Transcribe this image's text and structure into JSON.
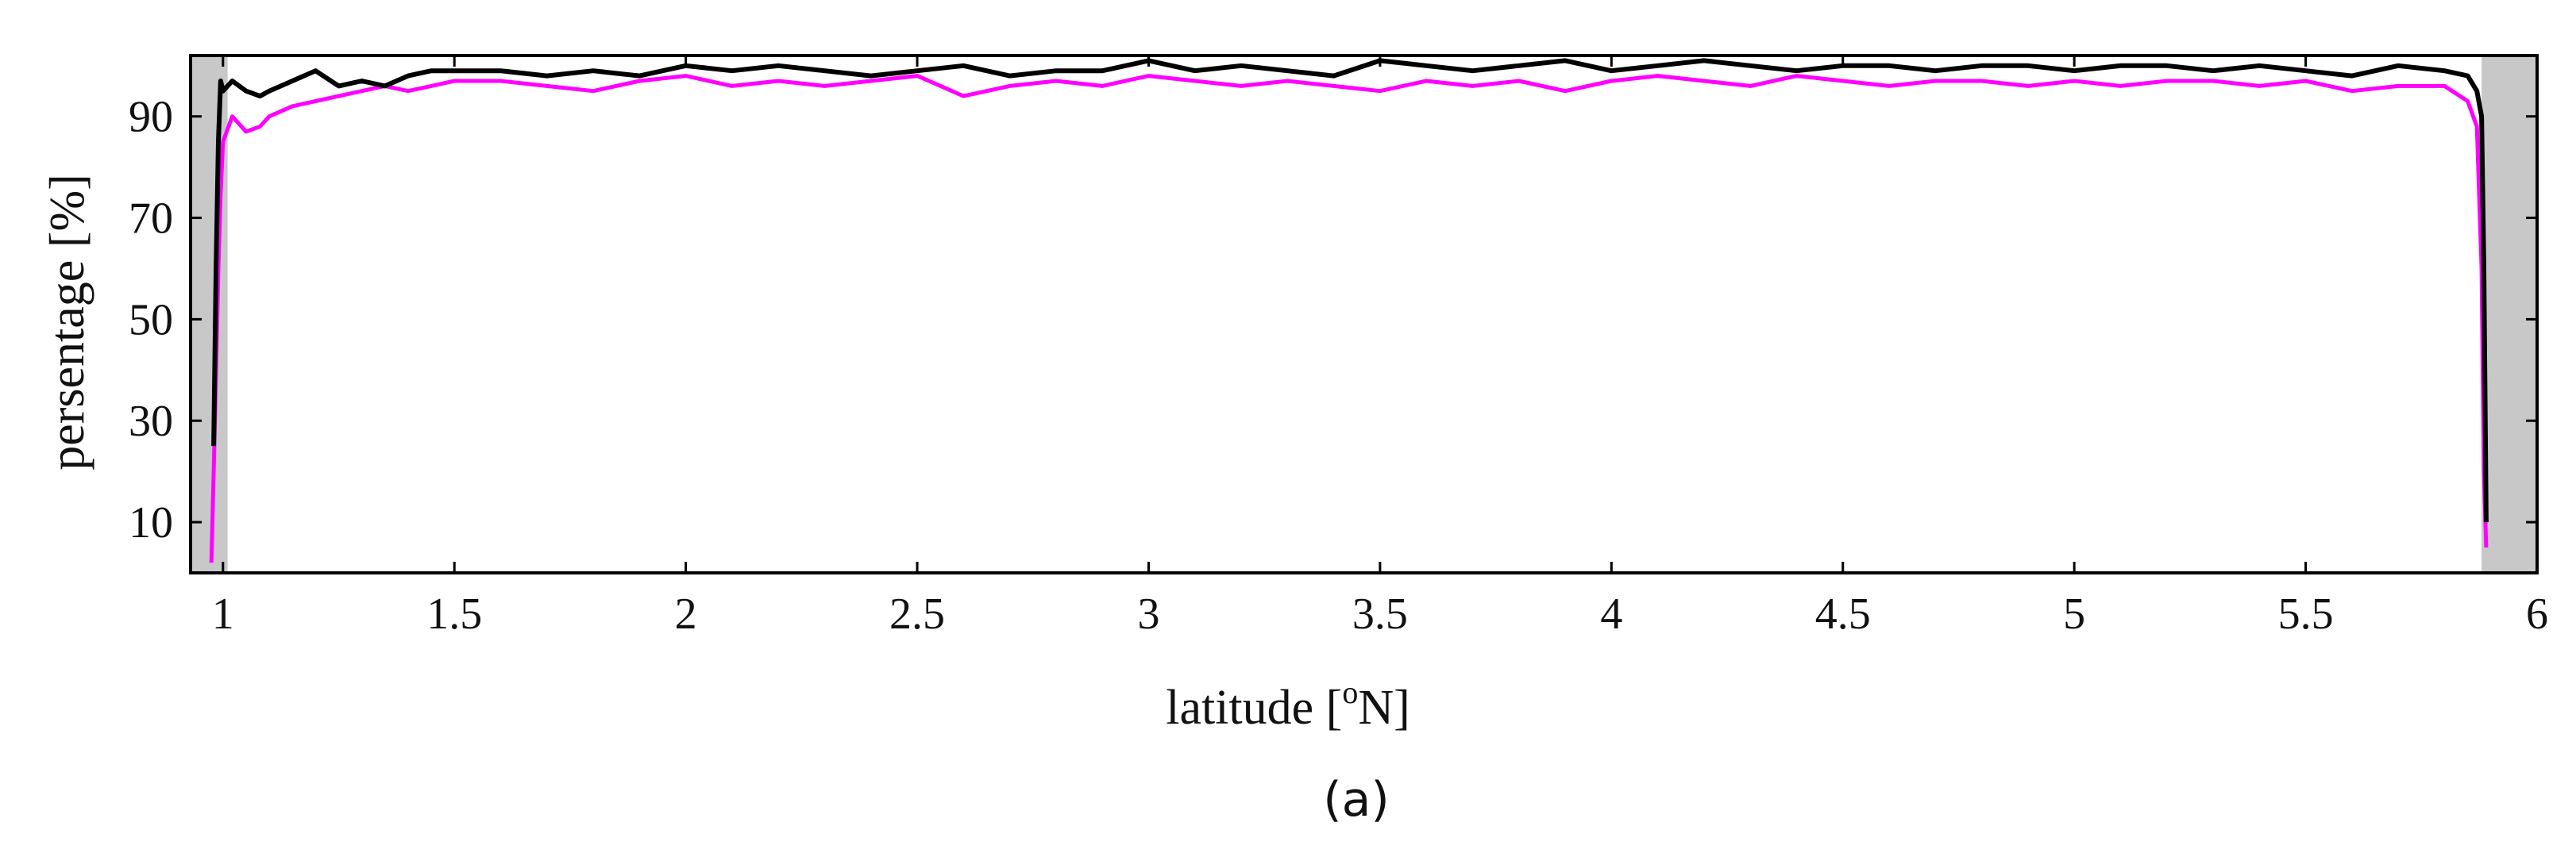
{
  "caption": "(a)",
  "chart_data": {
    "type": "line",
    "title": "",
    "xlabel": "latitude [",
    "xlabel_superscript": "o",
    "xlabel_suffix": "N]",
    "ylabel": "persentage [%]",
    "xlim": [
      0.93,
      6.0
    ],
    "ylim": [
      0,
      102
    ],
    "xticks": [
      1,
      1.5,
      2,
      2.5,
      3,
      3.5,
      4,
      4.5,
      5,
      5.5,
      6
    ],
    "xtick_labels": [
      "1",
      "1.5",
      "2",
      "2.5",
      "3",
      "3.5",
      "4",
      "4.5",
      "5",
      "5.5",
      "6"
    ],
    "yticks": [
      10,
      30,
      50,
      70,
      90
    ],
    "ytick_labels": [
      "10",
      "30",
      "50",
      "70",
      "90"
    ],
    "grid": false,
    "shaded_regions": [
      {
        "x": [
          0.93,
          1.01
        ],
        "color": "#c8c8c8"
      },
      {
        "x": [
          5.88,
          6.0
        ],
        "color": "#c8c8c8"
      }
    ],
    "series": [
      {
        "color": "#000000",
        "x": [
          0.98,
          0.985,
          0.99,
          0.995,
          1.0,
          1.02,
          1.05,
          1.08,
          1.1,
          1.15,
          1.2,
          1.25,
          1.3,
          1.35,
          1.4,
          1.45,
          1.5,
          1.6,
          1.7,
          1.8,
          1.9,
          2.0,
          2.1,
          2.2,
          2.3,
          2.4,
          2.5,
          2.6,
          2.7,
          2.8,
          2.9,
          3.0,
          3.1,
          3.2,
          3.3,
          3.4,
          3.5,
          3.6,
          3.7,
          3.8,
          3.9,
          4.0,
          4.1,
          4.2,
          4.3,
          4.4,
          4.5,
          4.6,
          4.7,
          4.8,
          4.9,
          5.0,
          5.1,
          5.2,
          5.3,
          5.4,
          5.5,
          5.6,
          5.7,
          5.8,
          5.85,
          5.87,
          5.88,
          5.885,
          5.89
        ],
        "y": [
          25,
          60,
          85,
          97,
          95,
          97,
          95,
          94,
          95,
          97,
          99,
          96,
          97,
          96,
          98,
          99,
          99,
          99,
          98,
          99,
          98,
          100,
          99,
          100,
          99,
          98,
          99,
          100,
          98,
          99,
          99,
          101,
          99,
          100,
          99,
          98,
          101,
          100,
          99,
          100,
          101,
          99,
          100,
          101,
          100,
          99,
          100,
          100,
          99,
          100,
          100,
          99,
          100,
          100,
          99,
          100,
          99,
          98,
          100,
          99,
          98,
          95,
          90,
          60,
          10
        ]
      },
      {
        "color": "#ff00ff",
        "x": [
          0.975,
          0.98,
          0.985,
          0.99,
          0.995,
          1.0,
          1.02,
          1.05,
          1.08,
          1.1,
          1.15,
          1.2,
          1.25,
          1.3,
          1.35,
          1.4,
          1.45,
          1.5,
          1.6,
          1.7,
          1.8,
          1.9,
          2.0,
          2.1,
          2.2,
          2.3,
          2.4,
          2.5,
          2.6,
          2.7,
          2.8,
          2.9,
          3.0,
          3.1,
          3.2,
          3.3,
          3.4,
          3.5,
          3.6,
          3.7,
          3.8,
          3.9,
          4.0,
          4.1,
          4.2,
          4.3,
          4.4,
          4.5,
          4.6,
          4.7,
          4.8,
          4.9,
          5.0,
          5.1,
          5.2,
          5.3,
          5.4,
          5.5,
          5.6,
          5.7,
          5.8,
          5.85,
          5.87,
          5.88,
          5.885,
          5.89
        ],
        "y": [
          2,
          20,
          40,
          60,
          75,
          85,
          90,
          87,
          88,
          90,
          92,
          93,
          94,
          95,
          96,
          95,
          96,
          97,
          97,
          96,
          95,
          97,
          98,
          96,
          97,
          96,
          97,
          98,
          94,
          96,
          97,
          96,
          98,
          97,
          96,
          97,
          96,
          95,
          97,
          96,
          97,
          95,
          97,
          98,
          97,
          96,
          98,
          97,
          96,
          97,
          97,
          96,
          97,
          96,
          97,
          97,
          96,
          97,
          95,
          96,
          96,
          93,
          88,
          60,
          20,
          5
        ]
      }
    ]
  }
}
